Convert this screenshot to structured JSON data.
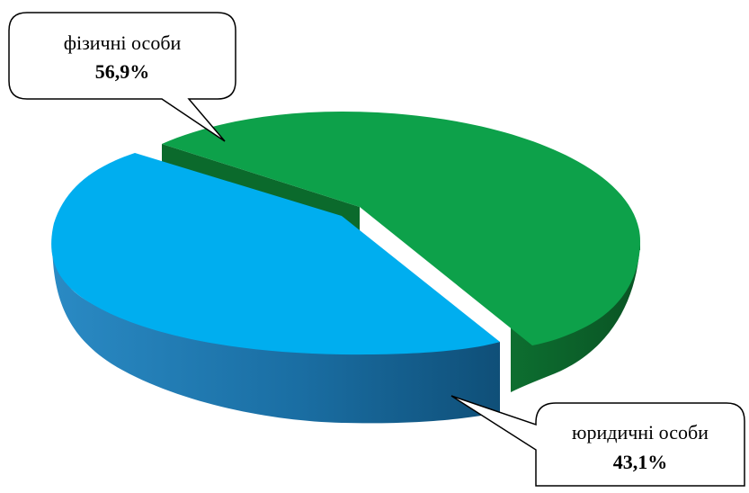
{
  "chart_data": {
    "type": "pie",
    "style": "3d-exploded",
    "slices": [
      {
        "label": "фізичні особи",
        "value": 56.9,
        "value_label": "56,9%",
        "color": "#0da14a",
        "side_color": "#0a6b2e"
      },
      {
        "label": "юридичні особи",
        "value": 43.1,
        "value_label": "43,1%",
        "color": "#00aeef",
        "side_color": "#1a6fa0"
      }
    ]
  }
}
